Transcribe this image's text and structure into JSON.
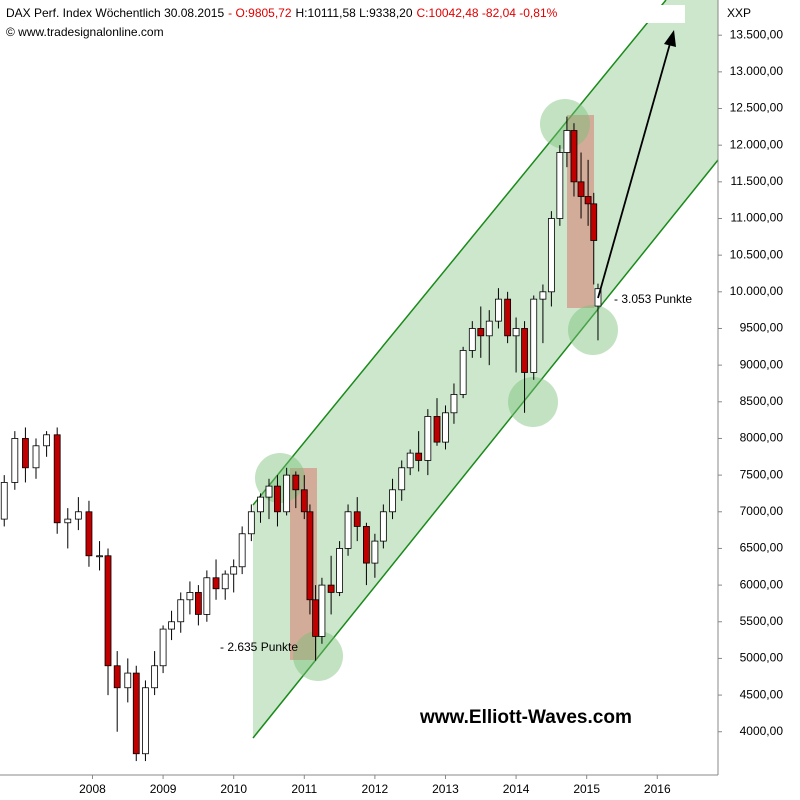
{
  "chart_data": {
    "type": "candlestick",
    "header": [
      {
        "text": "DAX Perf. Index Wöchentlich  30.08.2015",
        "color": "#000000"
      },
      {
        "text": "- O:9805,72",
        "color": "#e00000"
      },
      {
        "text": "H:10111,58 L:9338,20",
        "color": "#000000"
      },
      {
        "text": "C:10042,48 -82,04 -0,81%",
        "color": "#e00000"
      }
    ],
    "source": "© www.tradesignalonline.com",
    "axis_name": "XXP",
    "annotations": [
      {
        "text": "- 3.053 Punkte",
        "color": "#e00000"
      },
      {
        "text": "- 2.635 Punkte",
        "color": "#e00000"
      },
      {
        "text": "www.Elliott-Waves.com",
        "color": "#000000"
      }
    ],
    "up_color": "#ffffff",
    "down_color": "#c00000",
    "x": [
      2007.25,
      2007.4,
      2007.55,
      2007.7,
      2007.85,
      2008.0,
      2008.15,
      2008.3,
      2008.45,
      2008.6,
      2008.72,
      2008.85,
      2009.0,
      2009.12,
      2009.25,
      2009.38,
      2009.5,
      2009.62,
      2009.75,
      2009.88,
      2010.0,
      2010.12,
      2010.25,
      2010.38,
      2010.5,
      2010.62,
      2010.75,
      2010.88,
      2011.0,
      2011.12,
      2011.25,
      2011.38,
      2011.5,
      2011.58,
      2011.66,
      2011.75,
      2011.88,
      2012.0,
      2012.12,
      2012.25,
      2012.38,
      2012.5,
      2012.62,
      2012.75,
      2012.88,
      2013.0,
      2013.12,
      2013.25,
      2013.38,
      2013.5,
      2013.62,
      2013.75,
      2013.88,
      2014.0,
      2014.12,
      2014.25,
      2014.38,
      2014.5,
      2014.62,
      2014.75,
      2014.88,
      2015.0,
      2015.12,
      2015.22,
      2015.32,
      2015.42,
      2015.52,
      2015.6,
      2015.66
    ],
    "open": [
      6900,
      7400,
      8000,
      7600,
      7900,
      8050,
      6850,
      6900,
      7000,
      6400,
      6400,
      4900,
      4600,
      4800,
      3700,
      4600,
      4900,
      5400,
      5500,
      5800,
      5900,
      5600,
      6100,
      5950,
      6150,
      6250,
      6700,
      7000,
      7200,
      7350,
      7000,
      7500,
      7300,
      7000,
      5800,
      5300,
      6000,
      5900,
      6500,
      7000,
      6800,
      6300,
      6600,
      7000,
      7300,
      7600,
      7800,
      7700,
      8300,
      7950,
      8350,
      8600,
      9200,
      9500,
      9400,
      9600,
      9900,
      9400,
      9500,
      8900,
      9900,
      10000,
      11000,
      11900,
      12200,
      11500,
      11300,
      11200,
      9805.72
    ],
    "high": [
      7500,
      8100,
      8150,
      8000,
      8100,
      8150,
      7050,
      7200,
      7150,
      6600,
      6500,
      5100,
      5000,
      4900,
      4700,
      5100,
      5450,
      5650,
      5900,
      6050,
      6000,
      6200,
      6350,
      6200,
      6350,
      6800,
      7100,
      7250,
      7450,
      7500,
      7600,
      7550,
      7500,
      7100,
      6000,
      6100,
      6400,
      6600,
      7100,
      7200,
      6850,
      6700,
      7100,
      7450,
      7700,
      7850,
      8100,
      8400,
      8550,
      8450,
      8750,
      9250,
      9600,
      9800,
      9750,
      10050,
      10000,
      9650,
      9600,
      9950,
      10100,
      11100,
      12000,
      12390,
      12300,
      11900,
      11800,
      11350,
      10111.58
    ],
    "low": [
      6800,
      7300,
      7400,
      7450,
      7750,
      6700,
      6500,
      6750,
      6250,
      6200,
      4500,
      4000,
      4400,
      3600,
      3600,
      4500,
      4800,
      5250,
      5350,
      5600,
      5450,
      5500,
      5800,
      5800,
      5900,
      6150,
      6600,
      6850,
      6900,
      6800,
      6950,
      7050,
      6900,
      5600,
      4970,
      5200,
      5600,
      5850,
      6400,
      6600,
      6000,
      6100,
      6500,
      6900,
      7150,
      7500,
      7550,
      7500,
      7900,
      7850,
      8200,
      8550,
      9100,
      9100,
      9000,
      9500,
      9300,
      8900,
      8350,
      8800,
      9300,
      9800,
      10900,
      11700,
      11300,
      11000,
      10900,
      10100,
      9338.2
    ],
    "close": [
      7400,
      8000,
      7600,
      7900,
      8050,
      6850,
      6900,
      7000,
      6400,
      6400,
      4900,
      4600,
      4800,
      3700,
      4600,
      4900,
      5400,
      5500,
      5800,
      5900,
      5600,
      6100,
      5950,
      6150,
      6250,
      6700,
      7000,
      7200,
      7350,
      7000,
      7500,
      7300,
      7000,
      5800,
      5300,
      6000,
      5900,
      6500,
      7000,
      6800,
      6300,
      6600,
      7000,
      7300,
      7600,
      7800,
      7700,
      8300,
      7950,
      8350,
      8600,
      9200,
      9500,
      9400,
      9600,
      9900,
      9400,
      9500,
      8900,
      9900,
      10000,
      11000,
      11900,
      12200,
      11500,
      11300,
      11200,
      10700,
      10042.48
    ],
    "xlim": [
      2007.19,
      2017.36
    ],
    "xticks": [
      {
        "value": 2008.5,
        "label": "2008"
      },
      {
        "value": 2009.5,
        "label": "2009"
      },
      {
        "value": 2010.5,
        "label": "2010"
      },
      {
        "value": 2011.5,
        "label": "2011"
      },
      {
        "value": 2012.5,
        "label": "2012"
      },
      {
        "value": 2013.5,
        "label": "2013"
      },
      {
        "value": 2014.5,
        "label": "2014"
      },
      {
        "value": 2015.5,
        "label": "2015"
      },
      {
        "value": 2016.5,
        "label": "2016"
      }
    ],
    "ylim": [
      3410,
      13980
    ],
    "yticks": [
      {
        "value": 4000,
        "label": "4000,00"
      },
      {
        "value": 4500,
        "label": "4500,00"
      },
      {
        "value": 5000,
        "label": "5000,00"
      },
      {
        "value": 5500,
        "label": "5500,00"
      },
      {
        "value": 6000,
        "label": "6000,00"
      },
      {
        "value": 6500,
        "label": "6500,00"
      },
      {
        "value": 7000,
        "label": "7000,00"
      },
      {
        "value": 7500,
        "label": "7500,00"
      },
      {
        "value": 8000,
        "label": "8000,00"
      },
      {
        "value": 8500,
        "label": "8500,00"
      },
      {
        "value": 9000,
        "label": "9000,00"
      },
      {
        "value": 9500,
        "label": "9500,00"
      },
      {
        "value": 10000,
        "label": "10.000,00"
      },
      {
        "value": 10500,
        "label": "10.500,00"
      },
      {
        "value": 11000,
        "label": "11.000,00"
      },
      {
        "value": 11500,
        "label": "11.500,00"
      },
      {
        "value": 12000,
        "label": "12.000,00"
      },
      {
        "value": 12500,
        "label": "12.500,00"
      },
      {
        "value": 13000,
        "label": "13.000,00"
      },
      {
        "value": 13500,
        "label": "13.500,00"
      }
    ]
  }
}
